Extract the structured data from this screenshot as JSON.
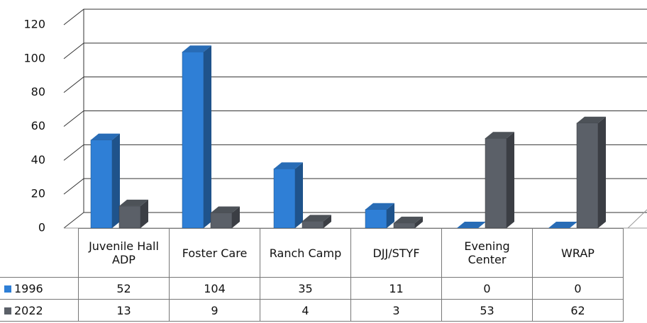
{
  "chart_data": {
    "type": "bar3d",
    "categories": [
      "Juvenile Hall ADP",
      "Foster Care",
      "Ranch Camp",
      "DJJ/STYF",
      "Evening Center",
      "WRAP"
    ],
    "series": [
      {
        "name": "1996",
        "color": "#2f7fd6",
        "values": [
          52,
          104,
          35,
          11,
          0,
          0
        ]
      },
      {
        "name": "2022",
        "color": "#5b6068",
        "values": [
          13,
          9,
          4,
          3,
          53,
          62
        ]
      }
    ],
    "ylim": [
      0,
      120
    ],
    "yticks": [
      0,
      20,
      40,
      60,
      80,
      100,
      120
    ],
    "grid": true
  }
}
